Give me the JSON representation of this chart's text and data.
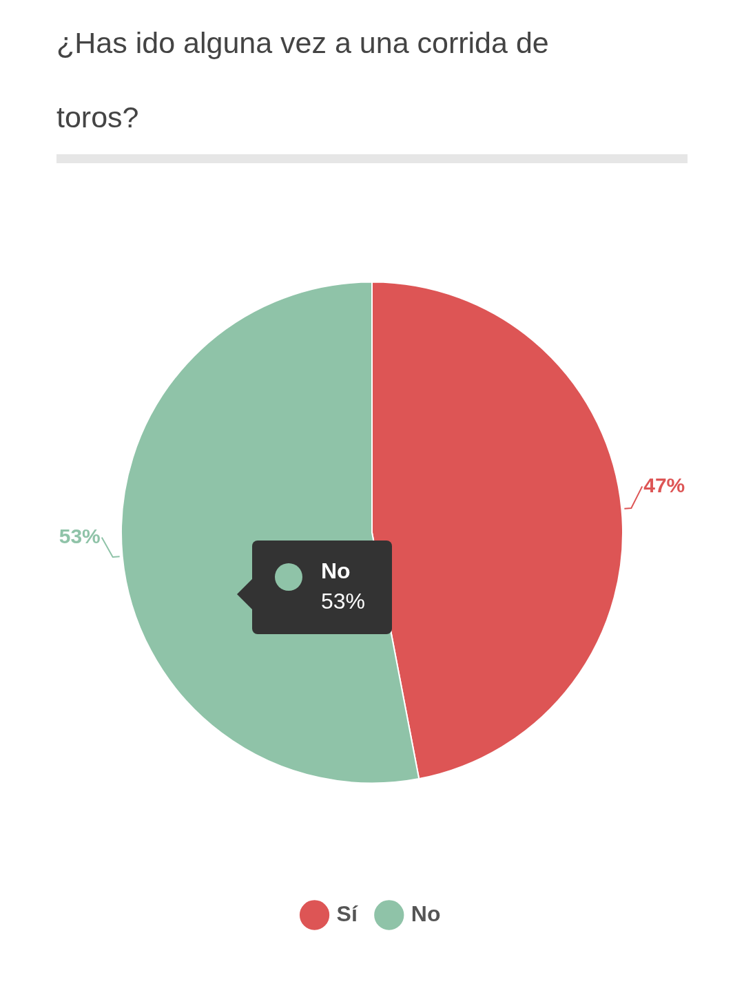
{
  "chart_data": {
    "type": "pie",
    "title": "¿Has ido alguna vez a una corrida de toros?",
    "categories": [
      "Sí",
      "No"
    ],
    "values": [
      47,
      53
    ],
    "colors": [
      "#dd5555",
      "#8fc3a8"
    ],
    "legend": "bottom",
    "value_labels": [
      "47%",
      "53%"
    ],
    "annotations": [
      "No",
      "53%"
    ]
  }
}
